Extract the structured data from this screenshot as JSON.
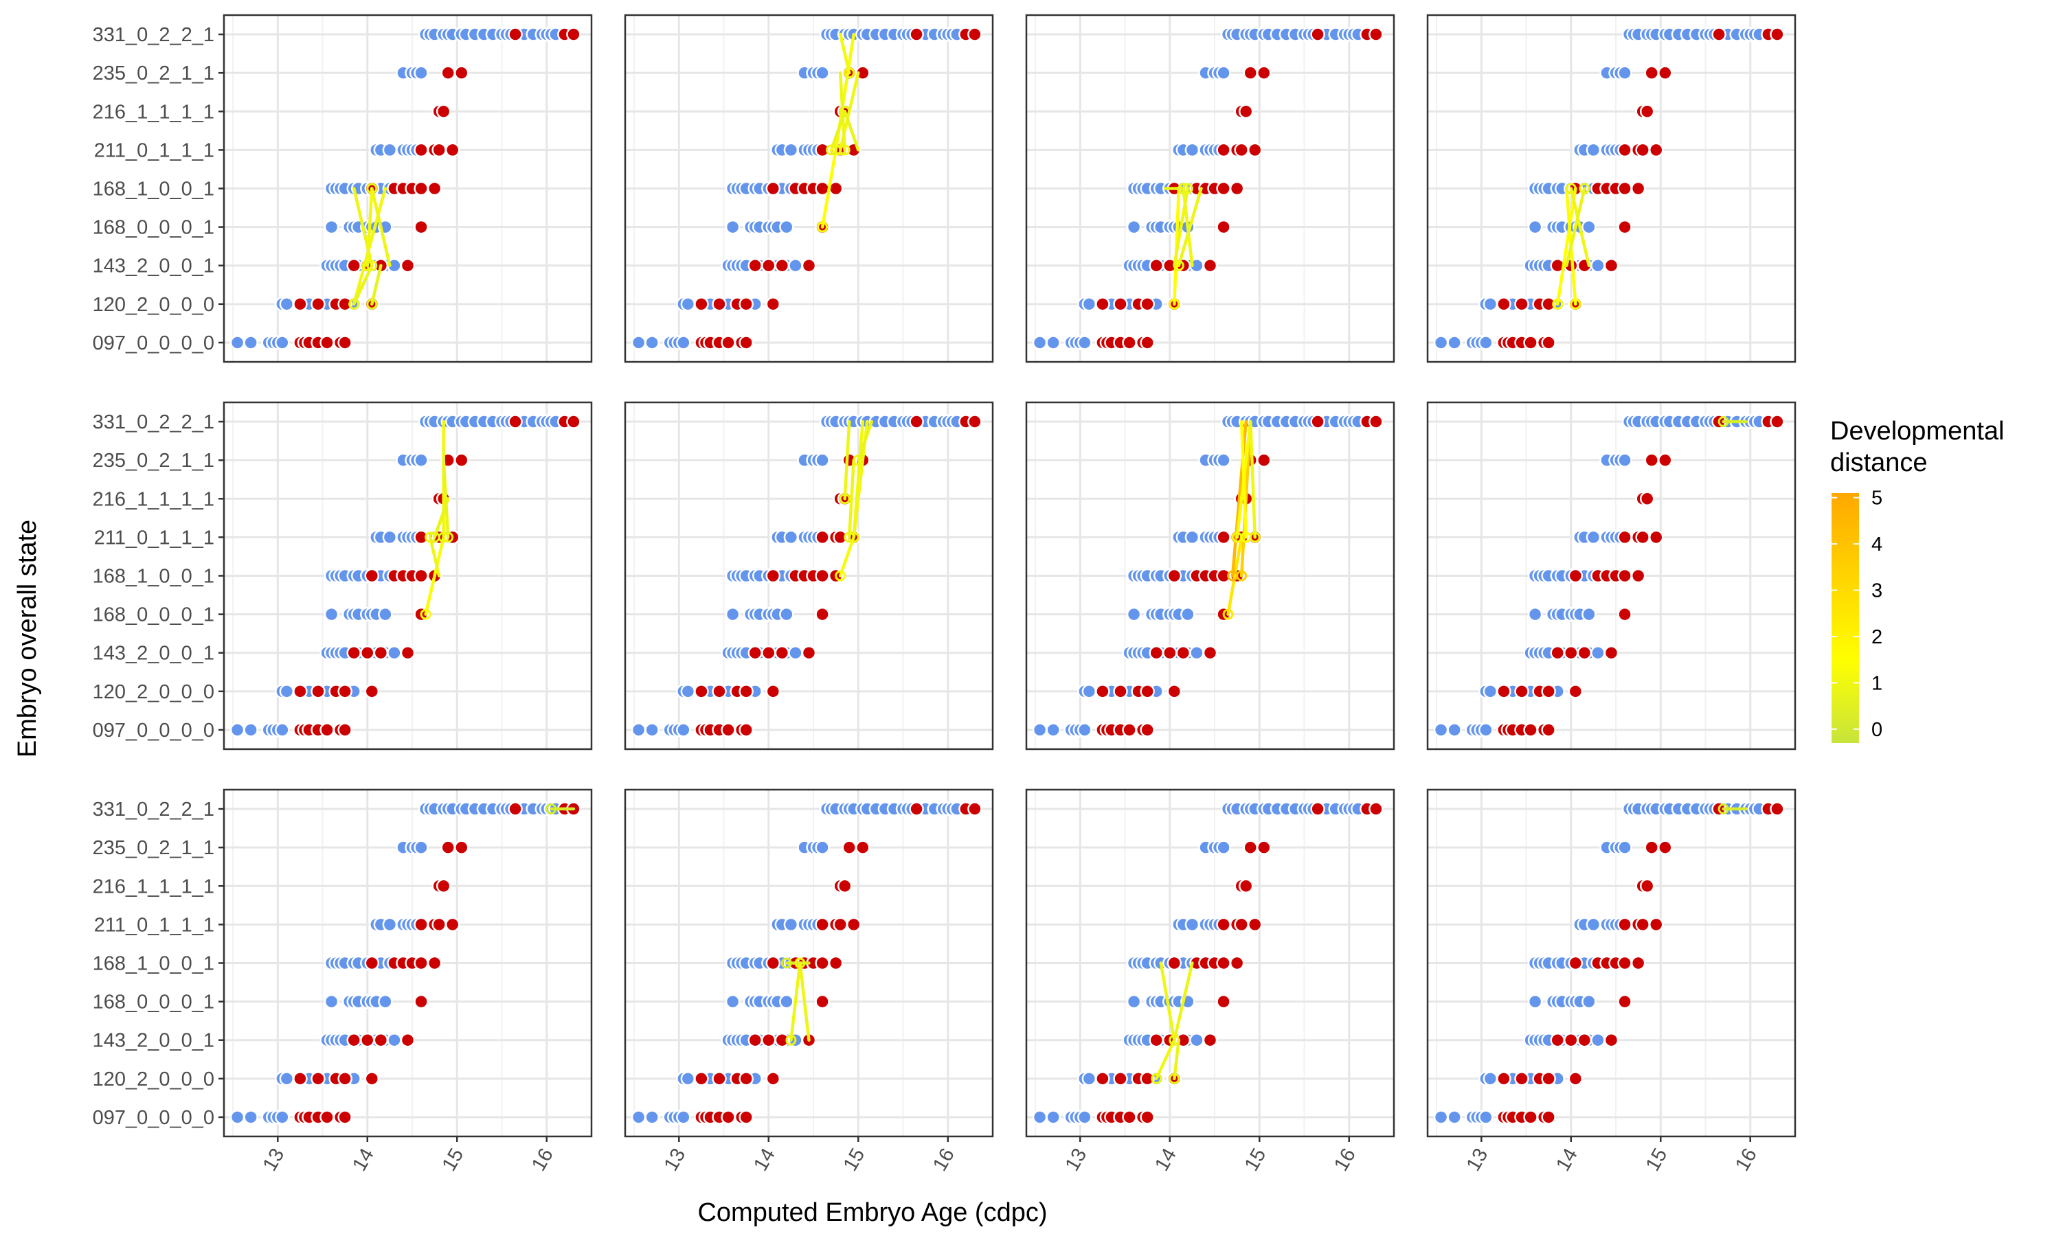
{
  "chart_data": {
    "type": "scatter",
    "layout": "small-multiples 3 rows x 4 columns",
    "xlabel": "Computed Embryo Age (cdpc)",
    "ylabel": "Embryo overall state",
    "x_ticks": [
      13,
      14,
      15,
      16
    ],
    "xlim": [
      12.4,
      16.5
    ],
    "y_categories": [
      "097_0_0_0_0",
      "120_2_0_0_0",
      "143_2_0_0_1",
      "168_0_0_0_1",
      "168_1_0_0_1",
      "211_0_1_1_1",
      "216_1_1_1_1",
      "235_0_2_1_1",
      "331_0_2_2_1"
    ],
    "grid": true,
    "point_colors": {
      "blue": "#6495ED",
      "red": "#CC0000"
    },
    "point_groups": [
      {
        "state": "097_0_0_0_0",
        "blue": [
          12.55,
          12.7,
          12.9,
          12.95,
          13.0,
          13.05
        ],
        "red": [
          13.25,
          13.3,
          13.35,
          13.45,
          13.55,
          13.7,
          13.75
        ]
      },
      {
        "state": "120_2_0_0_0",
        "blue": [
          13.05,
          13.1,
          13.35,
          13.55,
          13.85
        ],
        "red": [
          13.25,
          13.45,
          13.65,
          13.75,
          14.05
        ]
      },
      {
        "state": "143_2_0_0_1",
        "blue": [
          13.55,
          13.6,
          13.65,
          13.7,
          13.75,
          13.9,
          14.1,
          14.2,
          14.3
        ],
        "red": [
          13.85,
          14.0,
          14.15,
          14.45
        ]
      },
      {
        "state": "168_0_0_0_1",
        "blue": [
          13.6,
          13.8,
          13.85,
          13.9,
          14.0,
          14.05,
          14.1,
          14.2
        ],
        "red": [
          14.6
        ]
      },
      {
        "state": "168_1_0_0_1",
        "blue": [
          13.6,
          13.65,
          13.7,
          13.75,
          13.85,
          13.9,
          14.0,
          14.15,
          14.25
        ],
        "red": [
          14.05,
          14.3,
          14.4,
          14.5,
          14.6,
          14.75
        ]
      },
      {
        "state": "211_0_1_1_1",
        "blue": [
          14.1,
          14.15,
          14.25,
          14.4,
          14.45,
          14.5,
          14.55,
          14.6
        ],
        "red": [
          14.6,
          14.75,
          14.8,
          14.95
        ]
      },
      {
        "state": "216_1_1_1_1",
        "blue": [],
        "red": [
          14.8,
          14.85
        ]
      },
      {
        "state": "235_0_2_1_1",
        "blue": [
          14.4,
          14.5,
          14.55,
          14.6
        ],
        "red": [
          14.9,
          15.05
        ]
      },
      {
        "state": "331_0_2_2_1",
        "blue": [
          14.65,
          14.7,
          14.75,
          14.85,
          14.9,
          14.95,
          15.05,
          15.1,
          15.2,
          15.3,
          15.4,
          15.5,
          15.55,
          15.6,
          15.7,
          15.75,
          15.85,
          15.95,
          16.0,
          16.05,
          16.1
        ],
        "red": [
          15.65,
          16.2,
          16.3
        ]
      }
    ],
    "panels": [
      {
        "segments": [
          [
            13.85,
            "120_2_0_0_0",
            14.2,
            "168_1_0_0_1",
            1
          ],
          [
            13.85,
            "120_2_0_0_0",
            14.05,
            "143_2_0_0_1",
            0.8
          ],
          [
            14.05,
            "143_2_0_0_1",
            13.85,
            "168_1_0_0_1",
            0.9
          ],
          [
            14.05,
            "120_2_0_0_0",
            14.15,
            "143_2_0_0_1",
            0.7
          ],
          [
            14.0,
            "143_2_0_0_1",
            14.05,
            "168_1_0_0_1",
            1
          ],
          [
            14.05,
            "168_1_0_0_1",
            14.25,
            "143_2_0_0_1",
            0.9
          ]
        ]
      },
      {
        "segments": [
          [
            14.6,
            "168_0_0_0_1",
            14.75,
            "211_0_1_1_1",
            1.5
          ],
          [
            14.75,
            "211_0_1_1_1",
            14.95,
            "331_0_2_2_1",
            1.2
          ],
          [
            14.8,
            "211_0_1_1_1",
            15.0,
            "235_0_2_1_1",
            1.0
          ],
          [
            14.85,
            "211_0_1_1_1",
            14.8,
            "235_0_2_1_1",
            0.9
          ],
          [
            14.9,
            "235_0_2_1_1",
            14.8,
            "331_0_2_2_1",
            1.1
          ],
          [
            14.7,
            "211_0_1_1_1",
            14.85,
            "216_1_1_1_1",
            0.8
          ],
          [
            14.85,
            "216_1_1_1_1",
            15.0,
            "211_0_1_1_1",
            0.8
          ]
        ]
      },
      {
        "segments": [
          [
            14.05,
            "120_2_0_0_0",
            14.1,
            "168_1_0_0_1",
            1.6
          ],
          [
            14.15,
            "168_1_0_0_1",
            14.25,
            "143_2_0_0_1",
            1.0
          ],
          [
            14.15,
            "168_1_0_0_1",
            13.95,
            "168_1_0_0_1",
            0.8
          ],
          [
            14.1,
            "143_2_0_0_1",
            14.35,
            "168_1_0_0_1",
            0.9
          ],
          [
            14.2,
            "168_1_0_0_1",
            14.05,
            "143_2_0_0_1",
            0.9
          ]
        ]
      },
      {
        "segments": [
          [
            13.85,
            "120_2_0_0_0",
            14.05,
            "168_1_0_0_1",
            1.5
          ],
          [
            14.05,
            "120_2_0_0_0",
            13.95,
            "168_1_0_0_1",
            1.4
          ],
          [
            14.0,
            "168_1_0_0_1",
            14.2,
            "143_2_0_0_1",
            0.9
          ],
          [
            14.15,
            "168_1_0_0_1",
            13.95,
            "143_2_0_0_1",
            0.8
          ]
        ]
      },
      {
        "segments": [
          [
            14.65,
            "168_0_0_0_1",
            14.85,
            "211_0_1_1_1",
            1.3
          ],
          [
            14.85,
            "211_0_1_1_1",
            14.85,
            "331_0_2_2_1",
            1.0
          ],
          [
            14.7,
            "211_0_1_1_1",
            14.8,
            "168_1_0_0_1",
            0.9
          ],
          [
            14.75,
            "211_0_1_1_1",
            14.9,
            "216_1_1_1_1",
            0.8
          ],
          [
            14.9,
            "211_0_1_1_1",
            14.85,
            "235_0_2_1_1",
            0.8
          ]
        ]
      },
      {
        "segments": [
          [
            14.8,
            "168_1_0_0_1",
            14.95,
            "211_0_1_1_1",
            1.2
          ],
          [
            14.95,
            "211_0_1_1_1",
            15.05,
            "331_0_2_2_1",
            1.0
          ],
          [
            14.95,
            "211_0_1_1_1",
            15.1,
            "331_0_2_2_1",
            1.0
          ],
          [
            14.9,
            "211_0_1_1_1",
            14.95,
            "235_0_2_1_1",
            0.9
          ],
          [
            15.0,
            "235_0_2_1_1",
            15.15,
            "331_0_2_2_1",
            0.8
          ],
          [
            14.85,
            "216_1_1_1_1",
            14.9,
            "331_0_2_2_1",
            0.9
          ]
        ]
      },
      {
        "segments": [
          [
            14.65,
            "168_0_0_0_1",
            14.8,
            "211_0_1_1_1",
            2.5
          ],
          [
            14.7,
            "168_1_0_0_1",
            14.85,
            "331_0_2_2_1",
            4.5
          ],
          [
            14.8,
            "168_1_0_0_1",
            14.9,
            "331_0_2_2_1",
            3.5
          ],
          [
            14.75,
            "211_0_1_1_1",
            14.9,
            "331_0_2_2_1",
            1.2
          ],
          [
            14.85,
            "211_0_1_1_1",
            14.8,
            "331_0_2_2_1",
            1.5
          ],
          [
            14.95,
            "211_0_1_1_1",
            14.9,
            "331_0_2_2_1",
            1.0
          ]
        ]
      },
      {
        "segments": [
          [
            15.7,
            "331_0_2_2_1",
            15.95,
            "331_0_2_2_1",
            0.2
          ]
        ]
      },
      {
        "segments": [
          [
            16.05,
            "331_0_2_2_1",
            16.3,
            "331_0_2_2_1",
            0.2
          ]
        ]
      },
      {
        "segments": [
          [
            14.2,
            "168_1_0_0_1",
            14.45,
            "168_1_0_0_1",
            0.3
          ],
          [
            14.25,
            "143_2_0_0_1",
            14.35,
            "168_1_0_0_1",
            0.9
          ],
          [
            14.35,
            "168_1_0_0_1",
            14.45,
            "143_2_0_0_1",
            0.9
          ]
        ]
      },
      {
        "segments": [
          [
            13.85,
            "120_2_0_0_0",
            14.05,
            "143_2_0_0_1",
            1.0
          ],
          [
            14.05,
            "143_2_0_0_1",
            13.9,
            "168_1_0_0_1",
            0.9
          ],
          [
            14.05,
            "143_2_0_0_1",
            14.25,
            "168_1_0_0_1",
            0.9
          ],
          [
            14.05,
            "120_2_0_0_0",
            14.1,
            "143_2_0_0_1",
            0.8
          ]
        ]
      },
      {
        "segments": [
          [
            15.7,
            "331_0_2_2_1",
            15.95,
            "331_0_2_2_1",
            0.2
          ]
        ]
      }
    ],
    "legend": {
      "title_lines": [
        "Developmental",
        "distance"
      ],
      "ticks": [
        0,
        1,
        2,
        3,
        4,
        5
      ],
      "range": [
        -0.3,
        5.1
      ],
      "colors": [
        "#c8e43c",
        "#ffff00",
        "#ffd400",
        "#ffa800"
      ],
      "placement": "right"
    }
  }
}
